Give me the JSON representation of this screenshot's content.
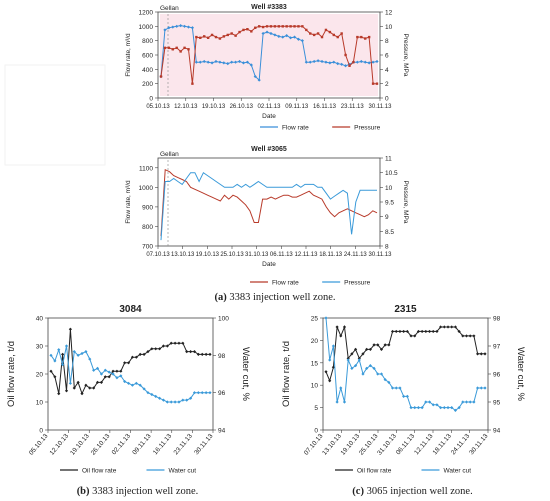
{
  "captions": {
    "a": {
      "letter": "(a)",
      "text": "3383 injection well zone."
    },
    "b": {
      "letter": "(b)",
      "text": "3383 injection well zone."
    },
    "c": {
      "letter": "(c)",
      "text": "3065 injection well zone."
    }
  },
  "chart_data": [
    {
      "id": "c1",
      "type": "line",
      "title": "Well #3383",
      "annotation": "Gellan",
      "xlabel": "Date",
      "ylabel": "Flow rate, m³/d",
      "y2label": "Pressure, MPa",
      "x_ticks": [
        "05.10.13",
        "12.10.13",
        "19.10.13",
        "26.10.13",
        "02.11.13",
        "09.11.13",
        "16.11.13",
        "23.11.13",
        "30.11.13"
      ],
      "ylim": [
        0,
        1200
      ],
      "y_ticks": [
        0,
        200,
        400,
        600,
        800,
        1000,
        1200
      ],
      "y2lim": [
        0,
        12
      ],
      "y2_ticks": [
        0,
        2,
        4,
        6,
        8,
        10,
        12
      ],
      "legend_position": "bottom-right",
      "series": [
        {
          "name": "Flow rate",
          "color": "#3a8fd9",
          "axis": "left",
          "marker": "diamond",
          "values": [
            300,
            950,
            980,
            990,
            1000,
            1010,
            1000,
            990,
            980,
            500,
            500,
            510,
            500,
            490,
            510,
            500,
            490,
            480,
            500,
            500,
            510,
            490,
            500,
            460,
            300,
            250,
            900,
            920,
            900,
            880,
            860,
            850,
            870,
            840,
            850,
            820,
            800,
            500,
            500,
            510,
            520,
            510,
            500,
            490,
            500,
            480,
            470,
            450,
            470,
            500,
            500,
            510,
            500,
            490,
            500,
            510
          ]
        },
        {
          "name": "Pressure",
          "color": "#b83a2a",
          "axis": "right",
          "marker": "square",
          "values": [
            3,
            7,
            7,
            6.8,
            7,
            6.5,
            7,
            6.8,
            2,
            8.5,
            8.4,
            8.6,
            8.4,
            8.8,
            8.5,
            8.3,
            8.6,
            8.8,
            9,
            8.7,
            9.2,
            9.5,
            9.6,
            9.3,
            9.8,
            10,
            9.9,
            10,
            10,
            10,
            10,
            10,
            10,
            10,
            10,
            10,
            10,
            9.5,
            9,
            8.8,
            9,
            8.5,
            9.5,
            9.2,
            8.8,
            8.5,
            9,
            6,
            4.5,
            5,
            8.5,
            8.5,
            8.3,
            8.5,
            2,
            2
          ]
        }
      ]
    },
    {
      "id": "c2",
      "type": "line",
      "title": "Well #3065",
      "annotation": "Gellan",
      "xlabel": "Date",
      "ylabel": "Flow rate, m³/d",
      "y2label": "Pressure, MPa",
      "x_ticks": [
        "07.10.13",
        "13.10.13",
        "19.10.13",
        "25.10.13",
        "31.10.13",
        "06.11.13",
        "12.11.13",
        "18.11.13",
        "24.11.13",
        "30.11.13"
      ],
      "ylim": [
        700,
        1150
      ],
      "y_ticks": [
        700,
        800,
        900,
        1000,
        1100
      ],
      "y2lim": [
        8,
        11
      ],
      "y2_ticks": [
        8,
        8.5,
        9,
        9.5,
        10,
        10.5,
        11
      ],
      "legend_position": "bottom",
      "series": [
        {
          "name": "Flow rate",
          "color": "#b83a2a",
          "axis": "left",
          "marker": "none",
          "values": [
            750,
            1090,
            1080,
            1060,
            1050,
            1040,
            1030,
            1000,
            990,
            980,
            970,
            960,
            950,
            940,
            930,
            960,
            940,
            960,
            950,
            930,
            910,
            880,
            820,
            820,
            940,
            940,
            950,
            940,
            950,
            960,
            960,
            950,
            950,
            960,
            970,
            980,
            960,
            950,
            940,
            900,
            870,
            850,
            870,
            880,
            890,
            880,
            870,
            860,
            850,
            860,
            880,
            870
          ]
        },
        {
          "name": "Pressure",
          "color": "#3a9ad9",
          "axis": "right",
          "marker": "none",
          "values": [
            8.2,
            10.2,
            10.2,
            10.3,
            10.2,
            10.1,
            10.3,
            10.5,
            10.5,
            10.2,
            10.5,
            10.4,
            10.3,
            10.2,
            10.1,
            10,
            10,
            10,
            10.1,
            10,
            10.1,
            10,
            10.1,
            10.2,
            10.1,
            10,
            10,
            10,
            10,
            10,
            10,
            10,
            10.1,
            10,
            10.1,
            10.1,
            10.1,
            10,
            10,
            9.8,
            9.6,
            9.7,
            9.8,
            9.9,
            9.8,
            8.4,
            9.5,
            9.9,
            9.9,
            9.9,
            9.9,
            9.9
          ]
        }
      ]
    },
    {
      "id": "c3",
      "type": "line",
      "title": "3084",
      "xlabel": "",
      "ylabel": "Oil flow rate, t/d",
      "y2label": "Water cut, %",
      "x_ticks": [
        "05.10.13",
        "12.10.13",
        "19.10.13",
        "26.10.13",
        "02.11.13",
        "09.11.13",
        "16.11.13",
        "23.11.13",
        "30.11.13"
      ],
      "ylim": [
        0,
        40
      ],
      "y_ticks": [
        0,
        10,
        20,
        30,
        40
      ],
      "y2lim": [
        94,
        100
      ],
      "y2_ticks": [
        94,
        96,
        98,
        100
      ],
      "legend_position": "bottom",
      "series": [
        {
          "name": "Oil flow rate",
          "color": "#222222",
          "axis": "left",
          "marker": "diamond",
          "values": [
            21,
            19,
            13,
            27,
            14,
            36,
            15,
            17,
            13,
            16,
            15,
            15,
            17,
            17,
            19,
            19,
            21,
            21,
            21,
            24,
            24,
            26,
            26,
            27,
            27,
            28,
            29,
            29,
            29,
            30,
            30,
            31,
            31,
            31,
            31,
            28,
            28,
            28,
            27,
            27,
            27,
            27
          ]
        },
        {
          "name": "Water cut",
          "color": "#3a9ad9",
          "axis": "right",
          "marker": "diamond",
          "values": [
            98,
            97.7,
            98.3,
            97.5,
            98.5,
            96.5,
            98.2,
            98,
            98.1,
            98.2,
            97.8,
            97.2,
            97.3,
            97,
            97.2,
            97.1,
            97,
            96.8,
            96.9,
            96.6,
            96.5,
            96.4,
            96.5,
            96.4,
            96.2,
            96,
            95.9,
            95.8,
            95.7,
            95.6,
            95.5,
            95.5,
            95.5,
            95.5,
            95.6,
            95.6,
            95.7,
            96,
            96,
            96,
            96,
            96
          ]
        }
      ]
    },
    {
      "id": "c4",
      "type": "line",
      "title": "2315",
      "xlabel": "",
      "ylabel": "Oil flow rate, t/d",
      "y2label": "Water cut, %",
      "x_ticks": [
        "07.10.13",
        "13.10.13",
        "19.10.13",
        "25.10.13",
        "31.10.13",
        "06.11.13",
        "12.11.13",
        "18.11.13",
        "24.11.13",
        "30.11.13"
      ],
      "ylim": [
        0,
        25
      ],
      "y_ticks": [
        0,
        5,
        10,
        15,
        20,
        25
      ],
      "y2lim": [
        94,
        98
      ],
      "y2_ticks": [
        94,
        95,
        96,
        97,
        98
      ],
      "legend_position": "bottom",
      "series": [
        {
          "name": "Oil flow rate",
          "color": "#222222",
          "axis": "left",
          "marker": "diamond",
          "values": [
            13,
            11,
            14,
            23,
            21,
            23,
            16,
            17,
            18,
            16,
            17,
            18,
            18,
            19,
            19,
            18,
            19,
            19,
            22,
            22,
            22,
            22,
            22,
            21,
            21,
            22,
            22,
            22,
            22,
            22,
            22,
            23,
            23,
            23,
            23,
            23,
            22,
            21,
            21,
            21,
            21,
            17,
            17,
            17
          ]
        },
        {
          "name": "Water cut",
          "color": "#3a9ad9",
          "axis": "right",
          "marker": "diamond",
          "values": [
            98,
            96.5,
            97,
            95,
            95.5,
            95,
            96.5,
            96.2,
            96.3,
            96.5,
            96,
            96.2,
            96.3,
            96.2,
            96,
            96,
            95.8,
            95.7,
            95.5,
            95.5,
            95.5,
            95.2,
            95.2,
            94.8,
            94.8,
            94.8,
            94.8,
            95,
            95,
            94.9,
            94.9,
            94.8,
            94.8,
            94.8,
            94.8,
            94.7,
            94.8,
            95,
            95,
            95,
            95,
            95.5,
            95.5,
            95.5
          ]
        }
      ]
    }
  ]
}
